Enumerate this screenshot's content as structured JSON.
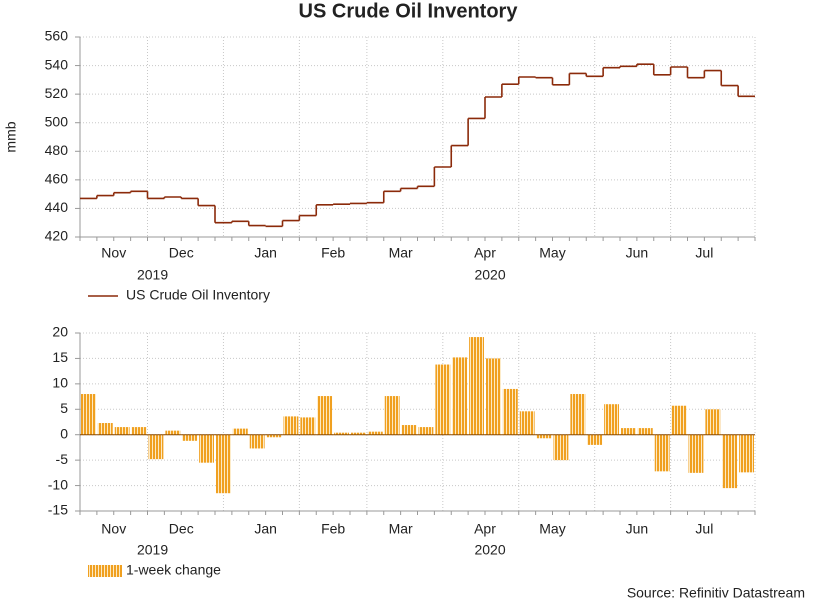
{
  "source": "Source: Refinitiv Datastream",
  "chart_data": [
    {
      "type": "line",
      "title": "US Crude Oil Inventory",
      "y_label": "mmb",
      "categories": [
        null,
        null,
        "Nov",
        null,
        null,
        null,
        "Dec",
        null,
        null,
        null,
        null,
        "Jan",
        null,
        null,
        null,
        "Feb",
        null,
        null,
        null,
        "Mar",
        null,
        null,
        null,
        null,
        "Apr",
        null,
        null,
        null,
        "May",
        null,
        null,
        null,
        null,
        "Jun",
        null,
        null,
        null,
        "Jul",
        null,
        null
      ],
      "years": [
        "2019",
        "2020"
      ],
      "series": [
        {
          "name": "US Crude Oil Inventory",
          "color": "#8b2a0a",
          "values": [
            447,
            449,
            451,
            452,
            447,
            448,
            447,
            442,
            430,
            431,
            428,
            427.5,
            431.5,
            435,
            442.5,
            443,
            443.5,
            444,
            452,
            454,
            455.5,
            469,
            484,
            503,
            518,
            527,
            532,
            531.5,
            526.5,
            534.5,
            532.5,
            538.5,
            539.5,
            541,
            533.5,
            539,
            531.5,
            536.5,
            526,
            518.5
          ]
        }
      ],
      "ylim": [
        420,
        560
      ],
      "yticks": [
        420,
        440,
        460,
        480,
        500,
        520,
        540,
        560
      ],
      "grid": true
    },
    {
      "type": "bar",
      "categories": [
        null,
        null,
        "Nov",
        null,
        null,
        null,
        "Dec",
        null,
        null,
        null,
        null,
        "Jan",
        null,
        null,
        null,
        "Feb",
        null,
        null,
        null,
        "Mar",
        null,
        null,
        null,
        null,
        "Apr",
        null,
        null,
        null,
        "May",
        null,
        null,
        null,
        null,
        "Jun",
        null,
        null,
        null,
        "Jul",
        null,
        null
      ],
      "years": [
        "2019",
        "2020"
      ],
      "series": [
        {
          "name": "1-week change",
          "color": "#f0a020",
          "values": [
            8,
            2.3,
            1.5,
            1.5,
            -4.8,
            0.8,
            -1.2,
            -5.5,
            -11.5,
            1.2,
            -2.7,
            -0.5,
            3.6,
            3.4,
            7.6,
            0.4,
            0.4,
            0.6,
            7.6,
            1.9,
            1.5,
            13.8,
            15.2,
            19.2,
            15,
            9,
            4.6,
            -0.7,
            -5,
            8,
            -2,
            6,
            1.3,
            1.3,
            -7.2,
            5.7,
            -7.5,
            5,
            -10.5,
            -7.4
          ]
        }
      ],
      "ylim": [
        -15,
        20
      ],
      "yticks": [
        -15,
        -10,
        -5,
        0,
        5,
        10,
        15,
        20
      ],
      "grid": true
    }
  ]
}
